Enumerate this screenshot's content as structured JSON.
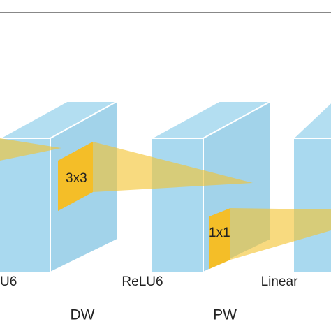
{
  "kernels": {
    "dw": "3x3",
    "pw": "1x1"
  },
  "activations": {
    "left": "U6",
    "middle": "ReLU6",
    "right": "Linear"
  },
  "operations": {
    "dw": "DW",
    "pw": "PW"
  }
}
